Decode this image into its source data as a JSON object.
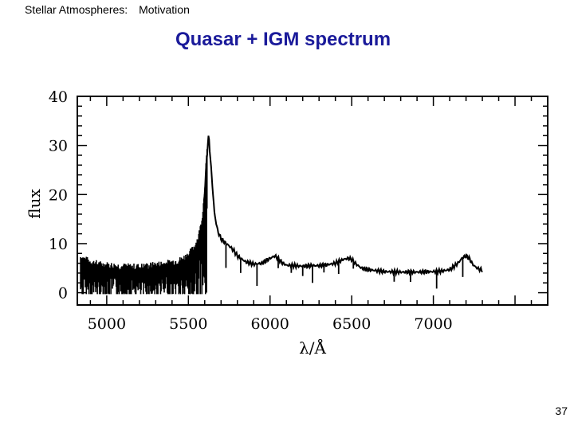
{
  "header": {
    "course": "Stellar Atmospheres:",
    "section": "Motivation"
  },
  "slide": {
    "title": "Quasar + IGM spectrum",
    "page_number": "37"
  },
  "chart_data": {
    "type": "line",
    "title": "Quasar + IGM spectrum",
    "xlabel": "λ/Å",
    "ylabel": "flux",
    "xlim": [
      4820,
      7700
    ],
    "ylim": [
      -2.5,
      40
    ],
    "xticks": [
      5000,
      5500,
      6000,
      6500,
      7000
    ],
    "yticks": [
      0,
      10,
      20,
      30,
      40
    ],
    "grid": false,
    "legend": "none",
    "line_color": "#000000",
    "series": [
      {
        "x": [
          4840,
          4900,
          4960,
          5020,
          5080,
          5140,
          5200,
          5260,
          5320,
          5380,
          5420,
          5460,
          5480,
          5500,
          5520,
          5540,
          5560,
          5580,
          5590,
          5600,
          5610,
          5620,
          5625,
          5630,
          5640,
          5650,
          5660,
          5680,
          5700,
          5720,
          5740,
          5760,
          5780,
          5800,
          5850,
          5900,
          5950,
          6000,
          6030,
          6050,
          6070,
          6100,
          6150,
          6200,
          6250,
          6300,
          6350,
          6400,
          6450,
          6480,
          6500,
          6520,
          6560,
          6600,
          6650,
          6700,
          6800,
          6900,
          7000,
          7050,
          7100,
          7150,
          7180,
          7200,
          7220,
          7240,
          7260,
          7280,
          7300
        ],
        "y": [
          6.5,
          5.5,
          5.0,
          4.8,
          4.6,
          4.5,
          4.5,
          4.7,
          5.0,
          5.3,
          5.6,
          6.0,
          6.5,
          7.0,
          7.8,
          8.8,
          10.5,
          13.5,
          16.5,
          20.5,
          26.0,
          31.0,
          32.0,
          29.5,
          25.0,
          20.5,
          16.0,
          12.5,
          11.0,
          10.3,
          9.8,
          9.2,
          8.5,
          7.5,
          6.3,
          5.8,
          6.0,
          7.0,
          7.5,
          7.0,
          6.2,
          5.6,
          5.5,
          5.4,
          5.5,
          5.5,
          5.7,
          6.0,
          6.8,
          7.0,
          6.8,
          6.0,
          5.0,
          4.7,
          4.5,
          4.3,
          4.2,
          4.2,
          4.3,
          4.4,
          4.7,
          6.0,
          7.2,
          7.5,
          7.0,
          5.8,
          5.2,
          4.8,
          4.6
        ]
      }
    ],
    "forest_region": [
      4840,
      5615
    ],
    "absorption_lines": [
      {
        "x": 5730,
        "depth": 5.0
      },
      {
        "x": 5820,
        "depth": 3.0
      },
      {
        "x": 5920,
        "depth": 4.5
      },
      {
        "x": 6050,
        "depth": 2.0
      },
      {
        "x": 6130,
        "depth": 1.5
      },
      {
        "x": 6200,
        "depth": 2.0
      },
      {
        "x": 6260,
        "depth": 3.5
      },
      {
        "x": 6330,
        "depth": 1.5
      },
      {
        "x": 6420,
        "depth": 2.5
      },
      {
        "x": 6510,
        "depth": 1.5
      },
      {
        "x": 6760,
        "depth": 2.0
      },
      {
        "x": 6860,
        "depth": 2.0
      },
      {
        "x": 7020,
        "depth": 3.5
      },
      {
        "x": 7180,
        "depth": 4.0
      }
    ]
  }
}
